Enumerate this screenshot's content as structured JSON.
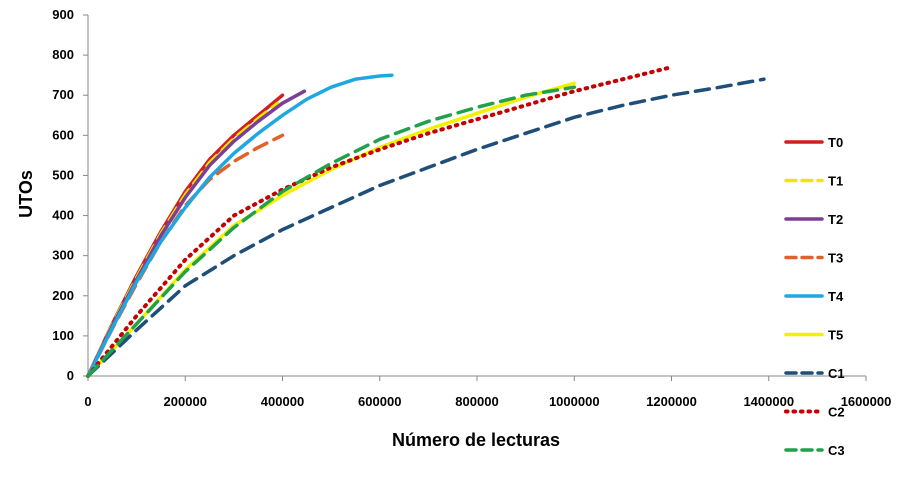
{
  "chart_data": {
    "type": "line",
    "title": "",
    "xlabel": "Número de lecturas",
    "ylabel": "UTOs",
    "xlim": [
      0,
      1600000
    ],
    "ylim": [
      0,
      900
    ],
    "xticks": [
      0,
      200000,
      400000,
      600000,
      800000,
      1000000,
      1200000,
      1400000,
      1600000
    ],
    "yticks": [
      0,
      100,
      200,
      300,
      400,
      500,
      600,
      700,
      800,
      900
    ],
    "xtick_labels": [
      "0",
      "200000",
      "400000",
      "600000",
      "800000",
      "1000000",
      "1200000",
      "1400000",
      "1600000"
    ],
    "ytick_labels": [
      "0",
      "100",
      "200",
      "300",
      "400",
      "500",
      "600",
      "700",
      "800",
      "900"
    ],
    "grid": false,
    "legend_position": "right",
    "series": [
      {
        "name": "T0",
        "color": "#d11f1f",
        "style": "solid",
        "x": [
          0,
          50000,
          100000,
          150000,
          200000,
          250000,
          300000,
          350000,
          400000
        ],
        "y": [
          0,
          130,
          250,
          360,
          460,
          540,
          600,
          650,
          700
        ]
      },
      {
        "name": "T1",
        "color": "#f2e600",
        "style": "dashed",
        "x": [
          0,
          50000,
          100000,
          150000,
          200000,
          250000,
          300000,
          350000,
          390000
        ],
        "y": [
          0,
          128,
          245,
          355,
          452,
          532,
          592,
          642,
          680
        ]
      },
      {
        "name": "T2",
        "color": "#7b3f97",
        "style": "solid",
        "x": [
          0,
          50000,
          100000,
          150000,
          200000,
          250000,
          300000,
          350000,
          400000,
          445000
        ],
        "y": [
          0,
          125,
          240,
          350,
          445,
          525,
          585,
          635,
          680,
          710
        ]
      },
      {
        "name": "T3",
        "color": "#e0622a",
        "style": "dashed",
        "x": [
          0,
          50000,
          100000,
          150000,
          200000,
          250000,
          300000,
          350000,
          400000
        ],
        "y": [
          0,
          118,
          230,
          335,
          425,
          490,
          535,
          570,
          600
        ]
      },
      {
        "name": "T4",
        "color": "#1fa7e0",
        "style": "solid",
        "x": [
          0,
          50000,
          100000,
          150000,
          200000,
          250000,
          300000,
          350000,
          400000,
          450000,
          500000,
          550000,
          600000,
          625000
        ],
        "y": [
          0,
          120,
          235,
          335,
          420,
          495,
          555,
          605,
          650,
          690,
          720,
          740,
          748,
          750
        ]
      },
      {
        "name": "T5",
        "color": "#f2f200",
        "style": "solid",
        "x": [
          0,
          100000,
          200000,
          300000,
          400000,
          500000,
          600000,
          700000,
          800000,
          900000,
          1000000
        ],
        "y": [
          0,
          130,
          265,
          375,
          450,
          515,
          570,
          615,
          655,
          695,
          730
        ]
      },
      {
        "name": "C1",
        "color": "#1f4e79",
        "style": "dashed",
        "x": [
          0,
          100000,
          200000,
          300000,
          400000,
          500000,
          600000,
          700000,
          800000,
          900000,
          1000000,
          1100000,
          1200000,
          1300000,
          1390000
        ],
        "y": [
          0,
          115,
          225,
          300,
          365,
          420,
          475,
          520,
          565,
          605,
          645,
          675,
          700,
          720,
          740
        ]
      },
      {
        "name": "C2",
        "color": "#c40000",
        "style": "dotted",
        "x": [
          0,
          100000,
          200000,
          300000,
          400000,
          500000,
          600000,
          700000,
          800000,
          900000,
          1000000,
          1100000,
          1200000
        ],
        "y": [
          0,
          150,
          290,
          400,
          465,
          520,
          565,
          605,
          640,
          675,
          710,
          740,
          770
        ]
      },
      {
        "name": "C3",
        "color": "#22a04b",
        "style": "dashed",
        "x": [
          0,
          100000,
          200000,
          300000,
          400000,
          500000,
          600000,
          700000,
          800000,
          900000,
          1000000
        ],
        "y": [
          0,
          130,
          260,
          370,
          460,
          530,
          590,
          635,
          670,
          700,
          720
        ]
      }
    ]
  }
}
